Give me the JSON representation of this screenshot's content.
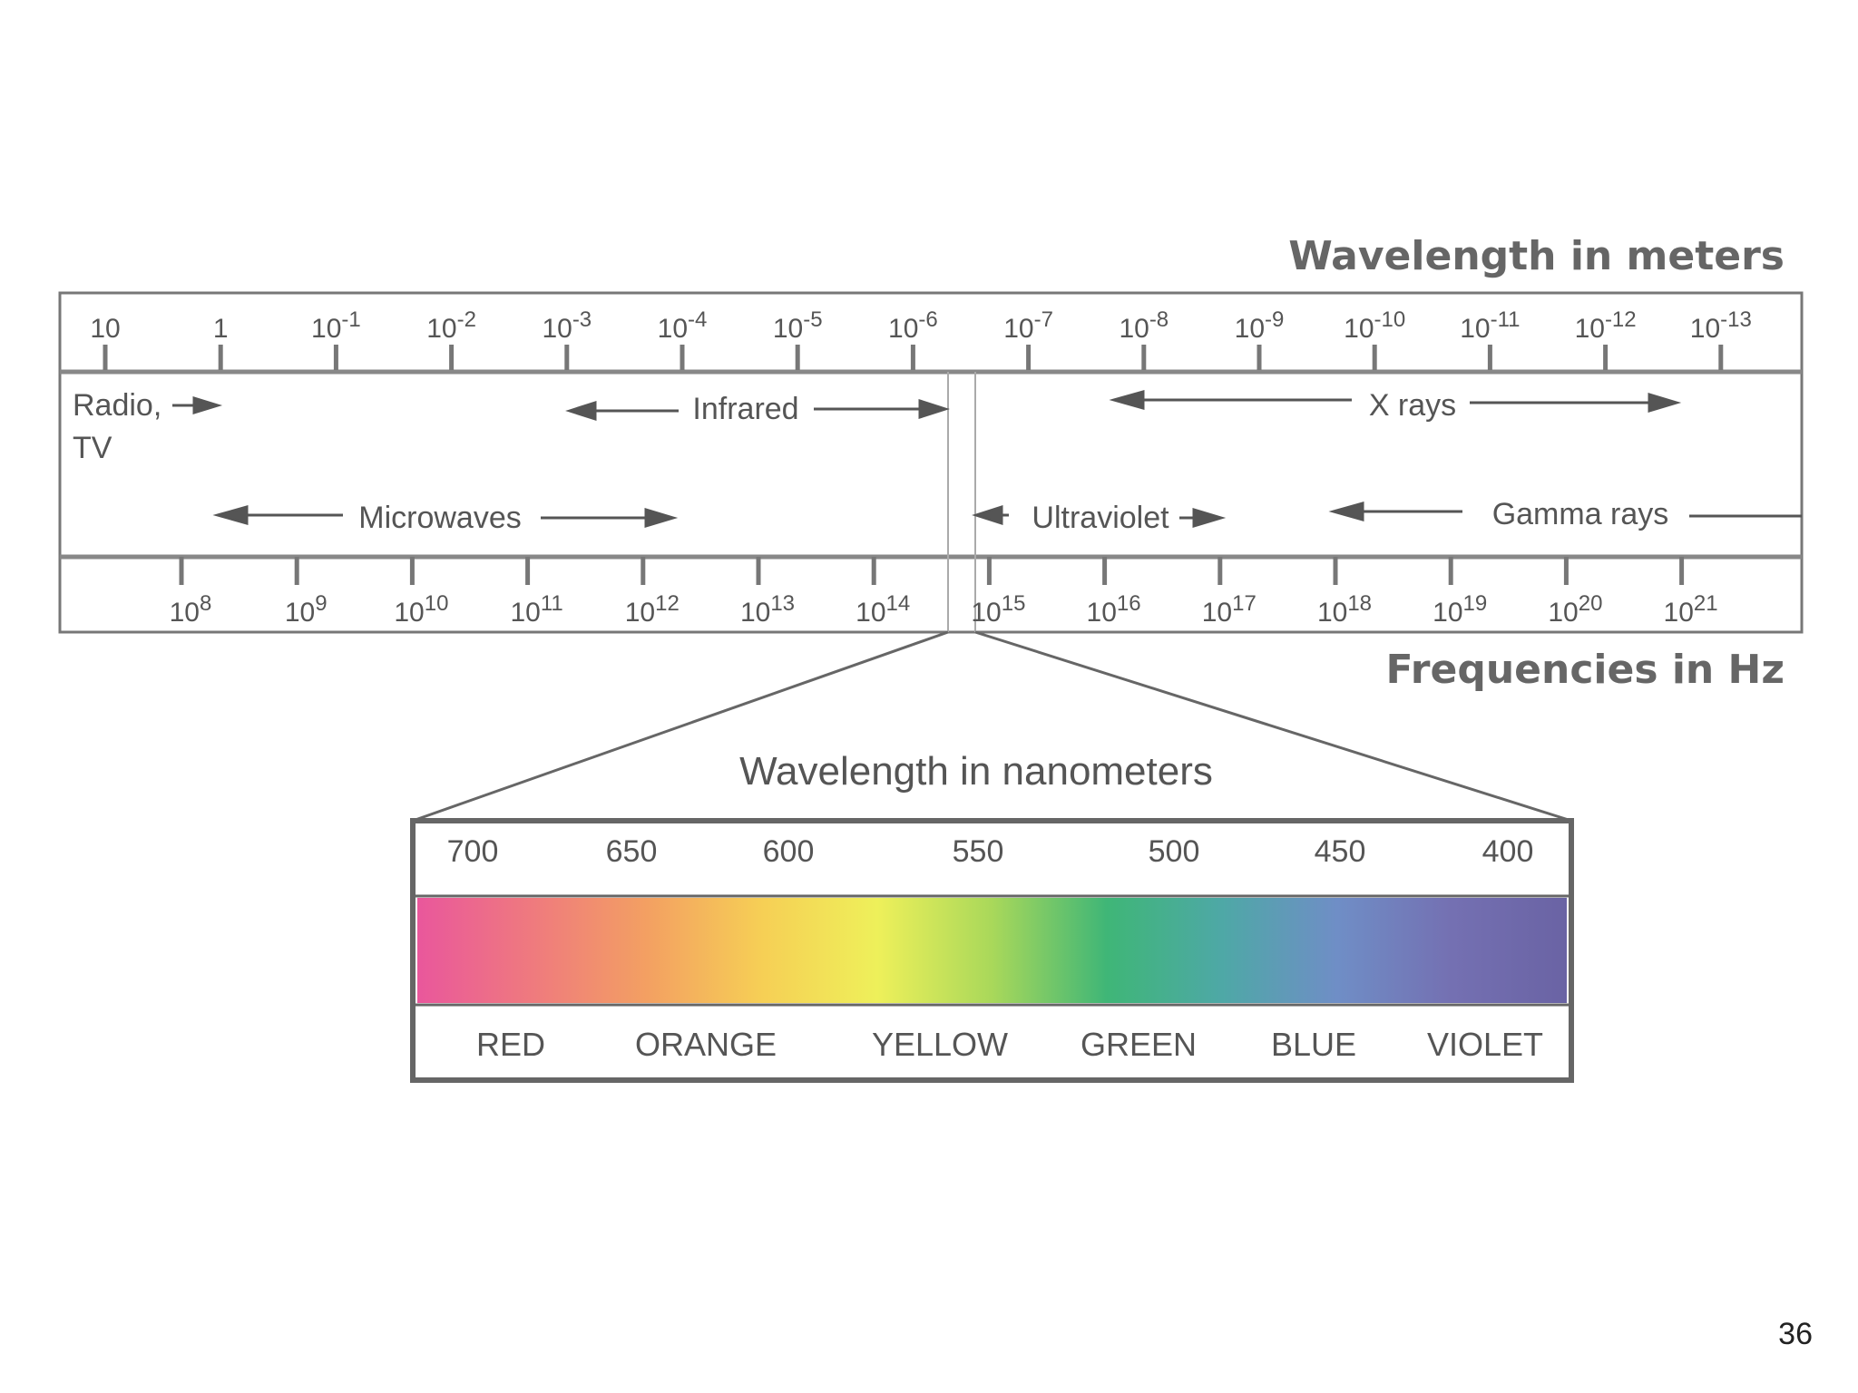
{
  "titles": {
    "wavelength_meters": "Wavelength in meters",
    "frequencies_hz": "Frequencies in Hz",
    "wavelength_nm": "Wavelength in nanometers"
  },
  "wavelength_ticks": [
    {
      "base": "10",
      "exp": ""
    },
    {
      "base": "1",
      "exp": ""
    },
    {
      "base": "10",
      "exp": "-1"
    },
    {
      "base": "10",
      "exp": "-2"
    },
    {
      "base": "10",
      "exp": "-3"
    },
    {
      "base": "10",
      "exp": "-4"
    },
    {
      "base": "10",
      "exp": "-5"
    },
    {
      "base": "10",
      "exp": "-6"
    },
    {
      "base": "10",
      "exp": "-7"
    },
    {
      "base": "10",
      "exp": "-8"
    },
    {
      "base": "10",
      "exp": "-9"
    },
    {
      "base": "10",
      "exp": "-10"
    },
    {
      "base": "10",
      "exp": "-11"
    },
    {
      "base": "10",
      "exp": "-12"
    },
    {
      "base": "10",
      "exp": "-13"
    }
  ],
  "frequency_ticks": [
    {
      "base": "10",
      "exp": "8"
    },
    {
      "base": "10",
      "exp": "9"
    },
    {
      "base": "10",
      "exp": "10"
    },
    {
      "base": "10",
      "exp": "11"
    },
    {
      "base": "10",
      "exp": "12"
    },
    {
      "base": "10",
      "exp": "13"
    },
    {
      "base": "10",
      "exp": "14"
    },
    {
      "base": "10",
      "exp": "15"
    },
    {
      "base": "10",
      "exp": "16"
    },
    {
      "base": "10",
      "exp": "17"
    },
    {
      "base": "10",
      "exp": "18"
    },
    {
      "base": "10",
      "exp": "19"
    },
    {
      "base": "10",
      "exp": "20"
    },
    {
      "base": "10",
      "exp": "21"
    }
  ],
  "bands": {
    "radio_line1": "Radio,",
    "radio_line2": "TV",
    "infrared": "Infrared",
    "xrays": "X rays",
    "microwaves": "Microwaves",
    "ultraviolet": "Ultraviolet",
    "gamma": "Gamma rays"
  },
  "nm_ticks": [
    "700",
    "650",
    "600",
    "550",
    "500",
    "450",
    "400"
  ],
  "colors": [
    "RED",
    "ORANGE",
    "YELLOW",
    "GREEN",
    "BLUE",
    "VIOLET"
  ],
  "spectrum_colors": [
    "#e9579c",
    "#ef7a7e",
    "#f3a062",
    "#f6cf55",
    "#eef05a",
    "#a9d85a",
    "#3fb677",
    "#4ea8a6",
    "#6f8ec6",
    "#7470b2",
    "#6a63a4"
  ],
  "slide_number": "36"
}
